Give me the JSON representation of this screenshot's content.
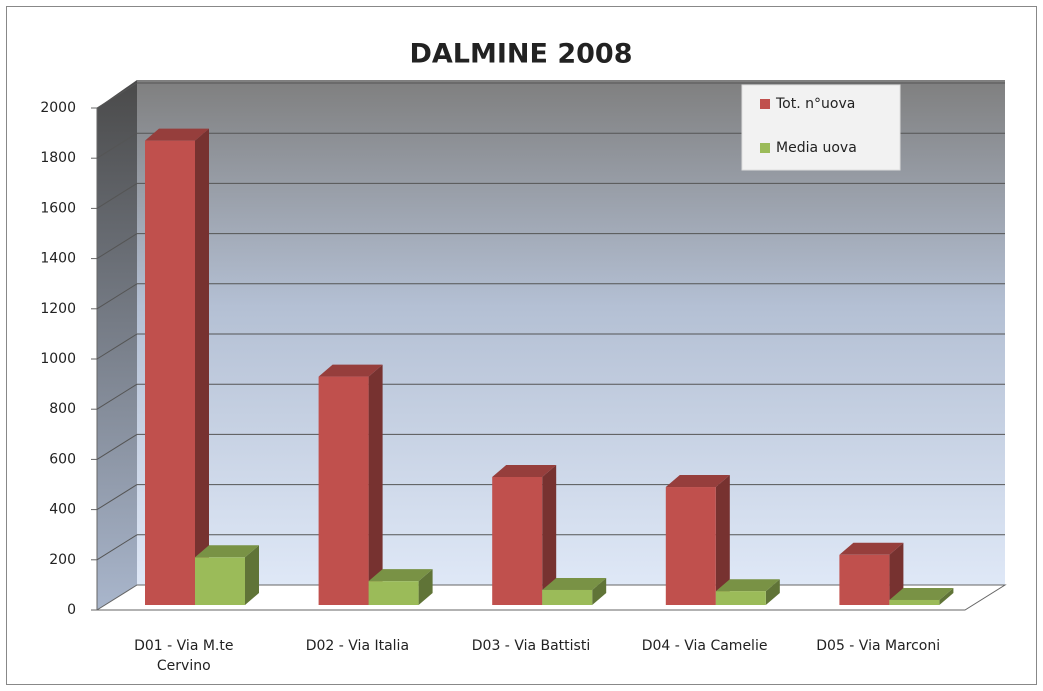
{
  "chart_data": {
    "type": "bar3d",
    "title": "DALMINE 2008",
    "categories": [
      "D01 - Via M.te Cervino",
      "D02 - Via Italia",
      "D03 - Via Battisti",
      "D04 - Via Camelie",
      "D05 - Via Marconi"
    ],
    "series": [
      {
        "name": "Tot. n°uova",
        "color": "#c0504d",
        "values": [
          1850,
          910,
          510,
          470,
          200
        ]
      },
      {
        "name": "Media uova",
        "color": "#9bbb59",
        "values": [
          190,
          95,
          60,
          55,
          20
        ]
      }
    ],
    "ylim": [
      0,
      2000
    ],
    "yticks": [
      0,
      200,
      400,
      600,
      800,
      1000,
      1200,
      1400,
      1600,
      1800,
      2000
    ],
    "grid": true,
    "legend": "top-right"
  }
}
